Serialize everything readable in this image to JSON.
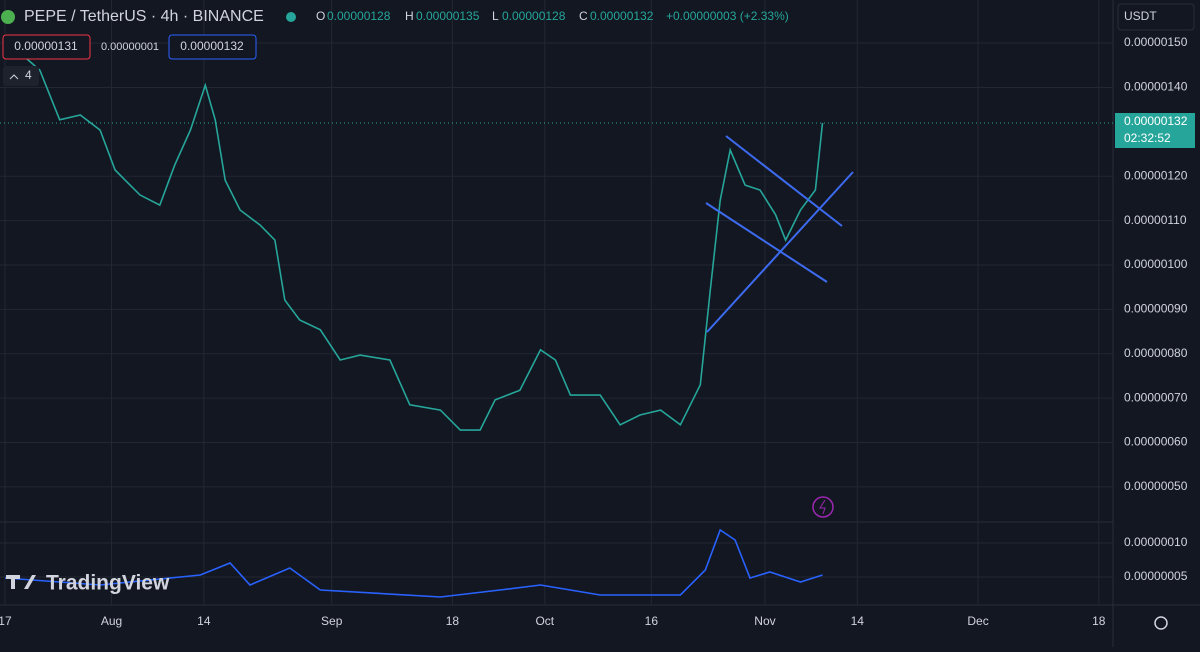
{
  "header": {
    "symbol": "PEPE / TetherUS · 4h · BINANCE",
    "open_label": "O",
    "open": "0.00000128",
    "high_label": "H",
    "high": "0.00000135",
    "low_label": "L",
    "low": "0.00000128",
    "close_label": "C",
    "close": "0.00000132",
    "change": "+0.00000003 (+2.33%)",
    "bid": "0.00000131",
    "spread": "0.00000001",
    "ask": "0.00000132",
    "indicators_count": "4",
    "currency": "USDT",
    "last_price": "0.00000132",
    "countdown": "02:32:52",
    "brand": "TradingView"
  },
  "chart_data": [
    {
      "type": "line",
      "x": [
        0,
        4.9,
        7.7,
        10.6,
        13.4,
        15.5,
        19,
        21.8,
        23.9,
        26.1,
        28.2,
        29.6,
        31,
        33.1,
        35.9,
        38,
        39.4,
        41.5,
        44.4,
        47.2,
        50,
        54.2,
        57,
        61.3,
        64.1,
        66.9,
        69,
        72.5,
        75.4,
        77.5,
        79.6,
        83.8,
        86.6,
        89.4,
        92.3,
        95.1,
        97.9,
        99.3,
        100.7,
        102.1,
        104.2,
        106.3,
        108.5,
        109.9,
        112,
        114.1,
        115.1
      ],
      "series": [
        {
          "color": "#26a69a",
          "values": [
            1.507e-06,
            1.439e-06,
            1.327e-06,
            1.338e-06,
            1.304e-06,
            1.214e-06,
            1.158e-06,
            1.135e-06,
            1.225e-06,
            1.304e-06,
            1.405e-06,
            1.327e-06,
            1.191e-06,
            1.124e-06,
            1.09e-06,
            1.056e-06,
            9.21e-07,
            8.76e-07,
            8.54e-07,
            7.86e-07,
            7.97e-07,
            7.86e-07,
            6.85e-07,
            6.73e-07,
            6.28e-07,
            6.28e-07,
            6.96e-07,
            7.18e-07,
            8.09e-07,
            7.86e-07,
            7.07e-07,
            7.07e-07,
            6.4e-07,
            6.62e-07,
            6.73e-07,
            6.4e-07,
            7.3e-07,
            9.44e-07,
            1.146e-06,
            1.259e-06,
            1.18e-06,
            1.169e-06,
            1.113e-06,
            1.056e-06,
            1.124e-06,
            1.169e-06,
            1.32e-06
          ]
        }
      ],
      "xlim": [
        -0.7,
        156
      ],
      "xticks": [
        {
          "value": 0,
          "label": "17"
        },
        {
          "value": 15,
          "label": "Aug"
        },
        {
          "value": 28,
          "label": "14"
        },
        {
          "value": 46,
          "label": "Sep"
        },
        {
          "value": 63,
          "label": "18"
        },
        {
          "value": 76,
          "label": "Oct"
        },
        {
          "value": 91,
          "label": "16"
        },
        {
          "value": 107,
          "label": "Nov"
        },
        {
          "value": 120,
          "label": "14"
        },
        {
          "value": 137,
          "label": "Dec"
        },
        {
          "value": 154,
          "label": "18"
        }
      ],
      "ylim": [
        4.21e-07,
        1.597e-06
      ],
      "yticks": [
        {
          "value": 5e-07,
          "label": "0.00000050"
        },
        {
          "value": 6e-07,
          "label": "0.00000060"
        },
        {
          "value": 7e-07,
          "label": "0.00000070"
        },
        {
          "value": 8e-07,
          "label": "0.00000080"
        },
        {
          "value": 9e-07,
          "label": "0.00000090"
        },
        {
          "value": 1e-06,
          "label": "0.00000100"
        },
        {
          "value": 1.1e-06,
          "label": "0.00000110"
        },
        {
          "value": 1.2e-06,
          "label": "0.00000120"
        },
        {
          "value": 1.4e-06,
          "label": "0.00000140"
        },
        {
          "value": 1.5e-06,
          "label": "0.00000150"
        }
      ],
      "grid": true
    },
    {
      "type": "line",
      "x": [
        0,
        13.4,
        27.5,
        31.7,
        34.5,
        40.1,
        44.4,
        61.3,
        69.7,
        75.4,
        83.8,
        95.1,
        98.6,
        100.7,
        102.8,
        104.9,
        107.7,
        112,
        115.1
      ],
      "series": [
        {
          "color": "#2962ff",
          "values": [
            4.85e-08,
            3.82e-08,
            5.29e-08,
            7.06e-08,
            3.82e-08,
            6.32e-08,
            3.09e-08,
            2.06e-08,
            3.09e-08,
            3.82e-08,
            2.35e-08,
            2.35e-08,
            6.03e-08,
            1.191e-07,
            1.044e-07,
            4.85e-08,
            5.74e-08,
            4.26e-08,
            5.29e-08
          ]
        }
      ],
      "xlim": [
        -0.7,
        156
      ],
      "ylim": [
        8.8e-09,
        1.309e-07
      ],
      "yticks": [
        {
          "value": 5e-08,
          "label": "0.00000005"
        },
        {
          "value": 1e-07,
          "label": "0.00000010"
        }
      ],
      "grid": true
    }
  ]
}
